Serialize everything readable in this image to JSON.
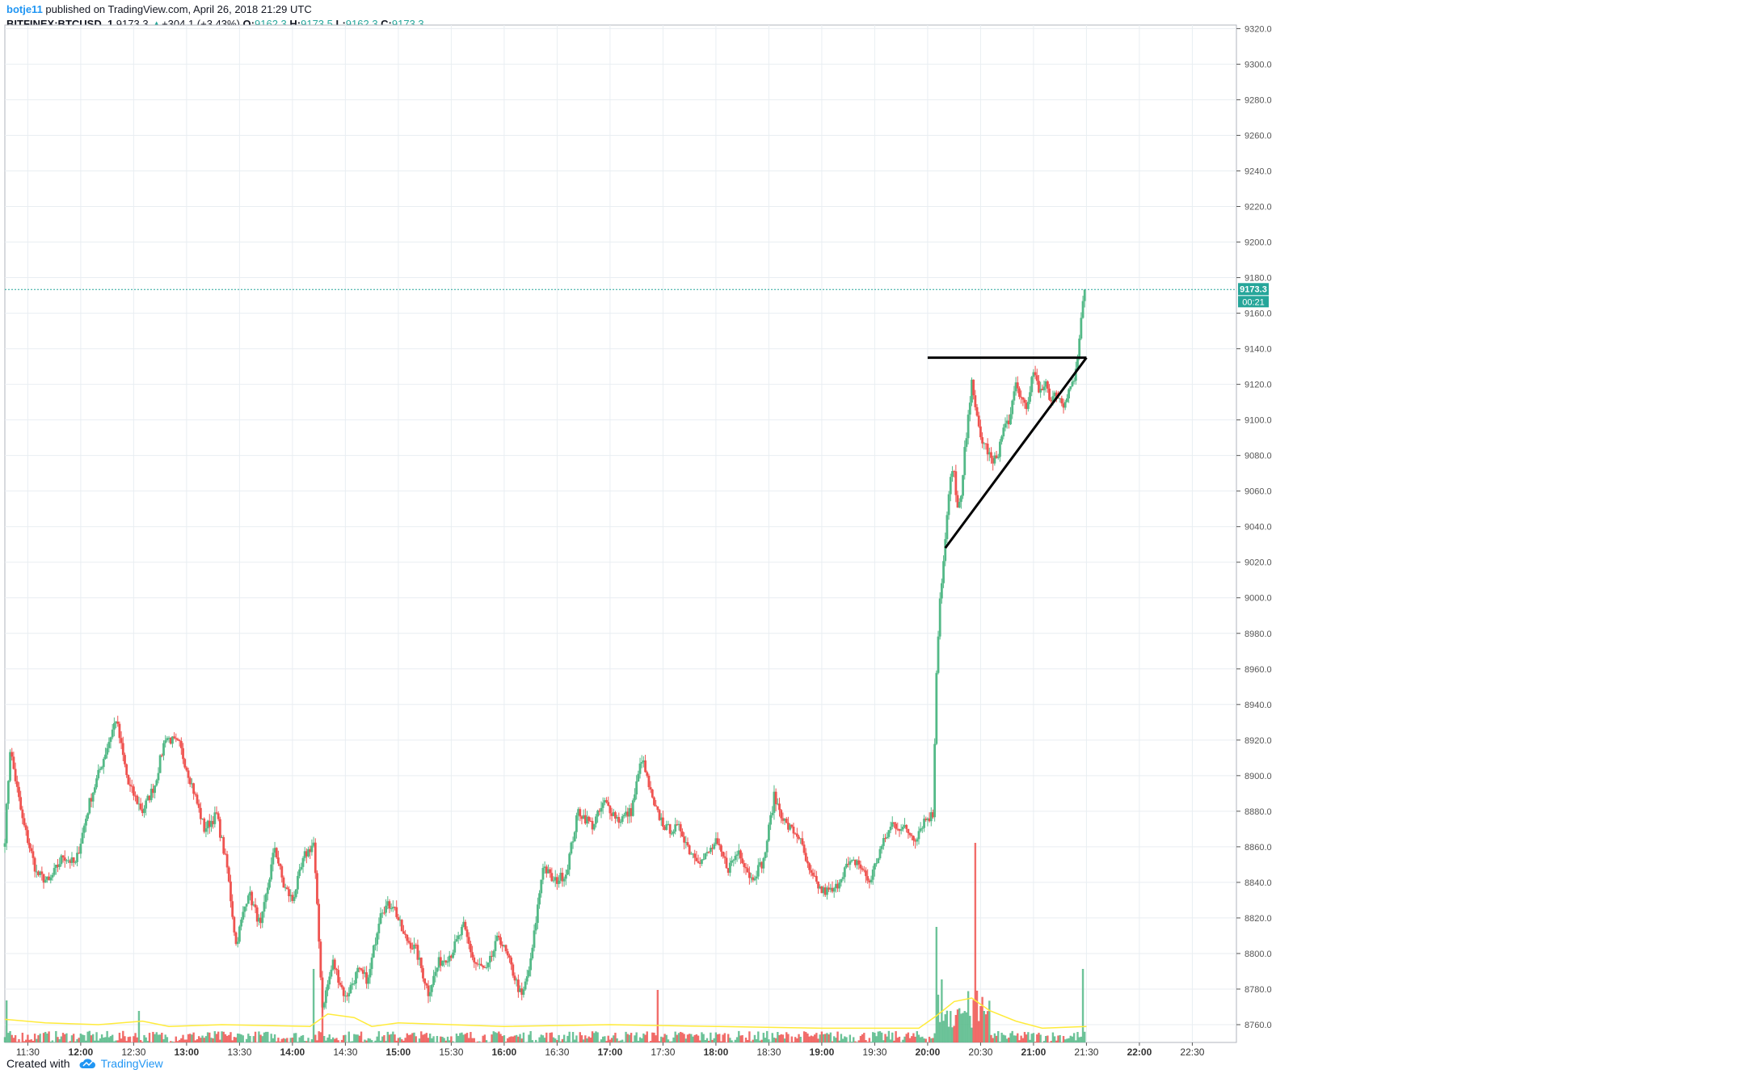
{
  "header": {
    "author": "botje11",
    "published_text": "published on TradingView.com, April 26, 2018 21:29 UTC",
    "symbol": "BITFINEX:BTCUSD, 1",
    "last": "9173.3",
    "change_arrow": "▲",
    "change": "+304.1 (+3.43%)",
    "o_label": "O:",
    "o_value": "9162.3",
    "h_label": "H:",
    "h_value": "9173.5",
    "l_label": "L:",
    "l_value": "9162.3",
    "c_label": "C:",
    "c_value": "9173.3"
  },
  "footer": {
    "created_with": "Created with",
    "brand": "TradingView"
  },
  "colors": {
    "up": "#26a69a",
    "up_light": "#53b987",
    "down": "#ef5350",
    "grid": "#e9eef2",
    "ma": "#ffeb3b",
    "price_line": "#26a69a"
  },
  "chart_data": {
    "type": "candlestick",
    "title": "",
    "symbol": "BITFINEX:BTCUSD",
    "interval": "1",
    "date": "April 26, 2018",
    "xlabel": "",
    "ylabel": "",
    "x_range": [
      "11:17",
      "22:55"
    ],
    "ylim": [
      8750,
      9322
    ],
    "y_ticks": [
      9320.0,
      9300.0,
      9280.0,
      9260.0,
      9240.0,
      9220.0,
      9200.0,
      9180.0,
      9160.0,
      9140.0,
      9120.0,
      9100.0,
      9080.0,
      9060.0,
      9040.0,
      9020.0,
      9000.0,
      8980.0,
      8960.0,
      8940.0,
      8920.0,
      8900.0,
      8880.0,
      8860.0,
      8840.0,
      8820.0,
      8800.0,
      8780.0,
      8760.0
    ],
    "x_ticks": [
      {
        "t": "11:30",
        "bold": false
      },
      {
        "t": "12:00",
        "bold": true
      },
      {
        "t": "12:30",
        "bold": false
      },
      {
        "t": "13:00",
        "bold": true
      },
      {
        "t": "13:30",
        "bold": false
      },
      {
        "t": "14:00",
        "bold": true
      },
      {
        "t": "14:30",
        "bold": false
      },
      {
        "t": "15:00",
        "bold": true
      },
      {
        "t": "15:30",
        "bold": false
      },
      {
        "t": "16:00",
        "bold": true
      },
      {
        "t": "16:30",
        "bold": false
      },
      {
        "t": "17:00",
        "bold": true
      },
      {
        "t": "17:30",
        "bold": false
      },
      {
        "t": "18:00",
        "bold": true
      },
      {
        "t": "18:30",
        "bold": false
      },
      {
        "t": "19:00",
        "bold": true
      },
      {
        "t": "19:30",
        "bold": false
      },
      {
        "t": "20:00",
        "bold": true
      },
      {
        "t": "20:30",
        "bold": false
      },
      {
        "t": "21:00",
        "bold": true
      },
      {
        "t": "21:30",
        "bold": false
      },
      {
        "t": "22:00",
        "bold": true
      },
      {
        "t": "22:30",
        "bold": false
      }
    ],
    "price_path": [
      [
        "11:17",
        8865
      ],
      [
        "11:20",
        8915
      ],
      [
        "11:27",
        8875
      ],
      [
        "11:35",
        8845
      ],
      [
        "11:42",
        8840
      ],
      [
        "11:50",
        8855
      ],
      [
        "11:57",
        8850
      ],
      [
        "12:05",
        8885
      ],
      [
        "12:13",
        8910
      ],
      [
        "12:20",
        8932
      ],
      [
        "12:27",
        8895
      ],
      [
        "12:35",
        8880
      ],
      [
        "12:42",
        8895
      ],
      [
        "12:48",
        8922
      ],
      [
        "12:56",
        8917
      ],
      [
        "13:03",
        8895
      ],
      [
        "13:10",
        8870
      ],
      [
        "13:17",
        8878
      ],
      [
        "13:23",
        8848
      ],
      [
        "13:28",
        8805
      ],
      [
        "13:35",
        8835
      ],
      [
        "13:42",
        8815
      ],
      [
        "13:50",
        8860
      ],
      [
        "13:55",
        8838
      ],
      [
        "14:00",
        8830
      ],
      [
        "14:07",
        8855
      ],
      [
        "14:12",
        8862
      ],
      [
        "14:17",
        8770
      ],
      [
        "14:23",
        8795
      ],
      [
        "14:30",
        8775
      ],
      [
        "14:37",
        8790
      ],
      [
        "14:43",
        8785
      ],
      [
        "14:50",
        8825
      ],
      [
        "14:57",
        8828
      ],
      [
        "15:03",
        8810
      ],
      [
        "15:10",
        8802
      ],
      [
        "15:17",
        8778
      ],
      [
        "15:23",
        8795
      ],
      [
        "15:30",
        8800
      ],
      [
        "15:37",
        8815
      ],
      [
        "15:43",
        8795
      ],
      [
        "15:50",
        8790
      ],
      [
        "15:57",
        8810
      ],
      [
        "16:03",
        8795
      ],
      [
        "16:10",
        8775
      ],
      [
        "16:15",
        8795
      ],
      [
        "16:22",
        8850
      ],
      [
        "16:28",
        8840
      ],
      [
        "16:35",
        8845
      ],
      [
        "16:42",
        8880
      ],
      [
        "16:50",
        8872
      ],
      [
        "16:57",
        8885
      ],
      [
        "17:05",
        8875
      ],
      [
        "17:12",
        8880
      ],
      [
        "17:18",
        8910
      ],
      [
        "17:25",
        8882
      ],
      [
        "17:32",
        8870
      ],
      [
        "17:40",
        8870
      ],
      [
        "17:45",
        8858
      ],
      [
        "17:52",
        8852
      ],
      [
        "18:00",
        8862
      ],
      [
        "18:07",
        8848
      ],
      [
        "18:13",
        8858
      ],
      [
        "18:20",
        8842
      ],
      [
        "18:27",
        8852
      ],
      [
        "18:33",
        8888
      ],
      [
        "18:40",
        8872
      ],
      [
        "18:47",
        8866
      ],
      [
        "18:53",
        8845
      ],
      [
        "19:00",
        8835
      ],
      [
        "19:07",
        8835
      ],
      [
        "19:13",
        8848
      ],
      [
        "19:20",
        8852
      ],
      [
        "19:27",
        8840
      ],
      [
        "19:33",
        8858
      ],
      [
        "19:40",
        8873
      ],
      [
        "19:47",
        8870
      ],
      [
        "19:53",
        8865
      ],
      [
        "19:58",
        8875
      ],
      [
        "20:03",
        8878
      ],
      [
        "20:05",
        8960
      ],
      [
        "20:07",
        9000
      ],
      [
        "20:09",
        9020
      ],
      [
        "20:11",
        9045
      ],
      [
        "20:13",
        9068
      ],
      [
        "20:15",
        9070
      ],
      [
        "20:17",
        9050
      ],
      [
        "20:19",
        9055
      ],
      [
        "20:21",
        9082
      ],
      [
        "20:23",
        9100
      ],
      [
        "20:25",
        9125
      ],
      [
        "20:27",
        9105
      ],
      [
        "20:30",
        9090
      ],
      [
        "20:33",
        9085
      ],
      [
        "20:37",
        9075
      ],
      [
        "20:40",
        9082
      ],
      [
        "20:43",
        9095
      ],
      [
        "20:47",
        9102
      ],
      [
        "20:50",
        9120
      ],
      [
        "20:53",
        9112
      ],
      [
        "20:57",
        9108
      ],
      [
        "21:00",
        9128
      ],
      [
        "21:03",
        9115
      ],
      [
        "21:07",
        9122
      ],
      [
        "21:10",
        9110
      ],
      [
        "21:13",
        9115
      ],
      [
        "21:17",
        9108
      ],
      [
        "21:20",
        9118
      ],
      [
        "21:23",
        9122
      ],
      [
        "21:25",
        9135
      ],
      [
        "21:27",
        9155
      ],
      [
        "21:29",
        9173.3
      ]
    ],
    "moving_average_path": [
      [
        "11:17",
        8763
      ],
      [
        "11:40",
        8761
      ],
      [
        "12:10",
        8760
      ],
      [
        "12:35",
        8762
      ],
      [
        "12:50",
        8759
      ],
      [
        "13:20",
        8760
      ],
      [
        "14:10",
        8759
      ],
      [
        "14:20",
        8766
      ],
      [
        "14:35",
        8764
      ],
      [
        "14:45",
        8759
      ],
      [
        "15:00",
        8761
      ],
      [
        "16:00",
        8759
      ],
      [
        "17:00",
        8760
      ],
      [
        "18:00",
        8759
      ],
      [
        "19:00",
        8758
      ],
      [
        "19:55",
        8758
      ],
      [
        "20:05",
        8765
      ],
      [
        "20:15",
        8773
      ],
      [
        "20:25",
        8775
      ],
      [
        "20:35",
        8768
      ],
      [
        "20:50",
        8762
      ],
      [
        "21:05",
        8758
      ],
      [
        "21:30",
        8759
      ]
    ],
    "volume_spikes": [
      [
        "11:18",
        8
      ],
      [
        "12:33",
        6
      ],
      [
        "14:12",
        14
      ],
      [
        "14:17",
        10
      ],
      [
        "17:27",
        10
      ],
      [
        "20:05",
        22
      ],
      [
        "20:08",
        12
      ],
      [
        "20:27",
        38
      ],
      [
        "20:32",
        6
      ],
      [
        "21:28",
        14
      ]
    ],
    "annotations": {
      "horizontal_resistance": {
        "x_start": "20:00",
        "x_end": "21:30",
        "price": 9135
      },
      "ascending_trendline": {
        "start": [
          "20:10",
          9028
        ],
        "end": [
          "21:30",
          9135
        ]
      }
    },
    "last_price_label": "9173.3",
    "countdown_label": "00:21",
    "grid": true
  }
}
